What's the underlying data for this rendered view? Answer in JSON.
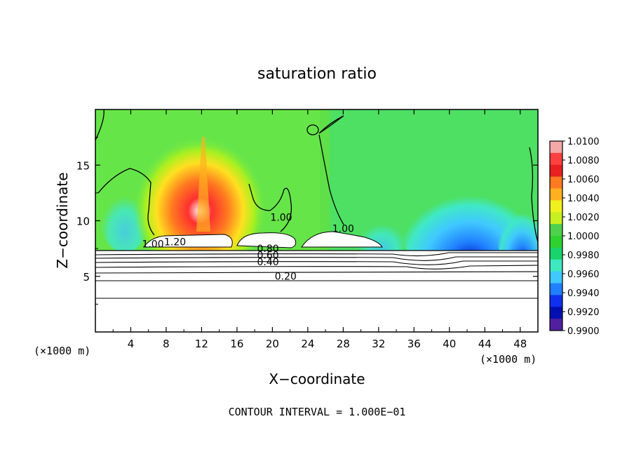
{
  "chart_data": {
    "type": "heatmap",
    "title": "saturation ratio",
    "xlabel": "X−coordinate",
    "ylabel": "Z−coordinate",
    "x_unit_left": "(×1000 m)",
    "x_unit_right": "(×1000 m)",
    "xlim": [
      0,
      50
    ],
    "ylim": [
      0,
      20
    ],
    "x_ticks": [
      "4",
      "8",
      "12",
      "16",
      "20",
      "24",
      "28",
      "32",
      "36",
      "40",
      "44",
      "48"
    ],
    "y_ticks": [
      "5",
      "10",
      "15"
    ],
    "footer": "CONTOUR INTERVAL = 1.000E−01",
    "colorbar": {
      "labels": [
        "1.0100",
        "1.0080",
        "1.0060",
        "1.0040",
        "1.0020",
        "1.0000",
        "0.9980",
        "0.9960",
        "0.9940",
        "0.9920",
        "0.9900"
      ],
      "colors": [
        "#f4a8a8",
        "#ff4040",
        "#e82020",
        "#ff7a20",
        "#ffb020",
        "#f0f020",
        "#c8f020",
        "#4cd24c",
        "#2ed22e",
        "#18d46a",
        "#40e8c0",
        "#40c8ff",
        "#2080ff",
        "#1030f0",
        "#0010b0",
        "#5020a0"
      ]
    },
    "contour_labels": [
      {
        "text": "0.20",
        "x": 21.5,
        "y": 4.7
      },
      {
        "text": "0.40",
        "x": 19.5,
        "y": 6.0
      },
      {
        "text": "0.60",
        "x": 19.5,
        "y": 6.6
      },
      {
        "text": "0.80",
        "x": 19.5,
        "y": 7.2
      },
      {
        "text": "1.00",
        "x": 6.5,
        "y": 7.6
      },
      {
        "text": "1.20",
        "x": 9.0,
        "y": 7.8
      },
      {
        "text": "1.00",
        "x": 21.0,
        "y": 10.0
      },
      {
        "text": "1.00",
        "x": 28.0,
        "y": 9.0
      }
    ]
  }
}
